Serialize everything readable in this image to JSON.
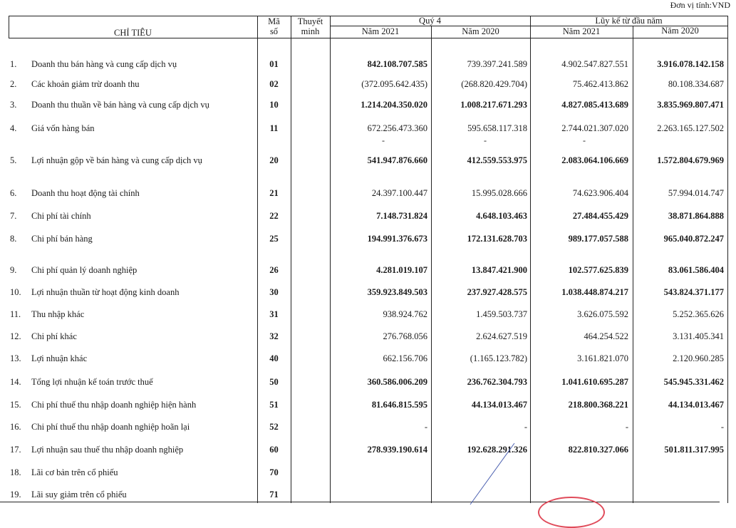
{
  "unit_label": "Đơn vị tính:VND",
  "header": {
    "indicator": "CHỈ TIÊU",
    "code": "Mã số",
    "code_line1": "Mã",
    "code_line2": "số",
    "note_line1": "Thuyết",
    "note_line2": "minh",
    "quarter_group": "Quý 4",
    "ytd_group": "Lũy kế từ đầu năm",
    "year_2021": "Năm 2021",
    "year_2020": "Năm 2020"
  },
  "rows": [
    {
      "no": "1.",
      "label": "Doanh thu bán hàng và cung cấp dịch vụ",
      "code": "01",
      "q4_2021": "842.108.707.585",
      "q4_2020": "739.397.241.589",
      "ytd_2021": "4.902.547.827.551",
      "ytd_2020": "3.916.078.142.158"
    },
    {
      "no": "2.",
      "label": "Các khoản giảm trừ doanh thu",
      "code": "02",
      "q4_2021": "(372.095.642.435)",
      "q4_2020": "(268.820.429.704)",
      "ytd_2021": "75.462.413.862",
      "ytd_2020": "80.108.334.687"
    },
    {
      "no": "3.",
      "label": "Doanh thu thuần về bán hàng và cung cấp dịch vụ",
      "code": "10",
      "q4_2021": "1.214.204.350.020",
      "q4_2020": "1.008.217.671.293",
      "ytd_2021": "4.827.085.413.689",
      "ytd_2020": "3.835.969.807.471"
    },
    {
      "no": "4.",
      "label": "Giá vốn hàng bán",
      "code": "11",
      "q4_2021": "672.256.473.360",
      "q4_2020": "595.658.117.318",
      "ytd_2021": "2.744.021.307.020",
      "ytd_2020": "2.263.165.127.502"
    },
    {
      "no": "5.",
      "label": "Lợi nhuận gộp về bán hàng và cung cấp dịch vụ",
      "code": "20",
      "q4_2021": "541.947.876.660",
      "q4_2020": "412.559.553.975",
      "ytd_2021": "2.083.064.106.669",
      "ytd_2020": "1.572.804.679.969"
    },
    {
      "no": "6.",
      "label": "Doanh thu hoạt động tài chính",
      "code": "21",
      "q4_2021": "24.397.100.447",
      "q4_2020": "15.995.028.666",
      "ytd_2021": "74.623.906.404",
      "ytd_2020": "57.994.014.747"
    },
    {
      "no": "7.",
      "label": "Chi phí tài chính",
      "code": "22",
      "q4_2021": "7.148.731.824",
      "q4_2020": "4.648.103.463",
      "ytd_2021": "27.484.455.429",
      "ytd_2020": "38.871.864.888"
    },
    {
      "no": "8.",
      "label": "Chi phí bán hàng",
      "code": "25",
      "q4_2021": "194.991.376.673",
      "q4_2020": "172.131.628.703",
      "ytd_2021": "989.177.057.588",
      "ytd_2020": "965.040.872.247"
    },
    {
      "no": "9.",
      "label": "Chi phí quản lý doanh nghiệp",
      "code": "26",
      "q4_2021": "4.281.019.107",
      "q4_2020": "13.847.421.900",
      "ytd_2021": "102.577.625.839",
      "ytd_2020": "83.061.586.404"
    },
    {
      "no": "10.",
      "label": "Lợi nhuận thuần từ hoạt động kinh doanh",
      "code": "30",
      "q4_2021": "359.923.849.503",
      "q4_2020": "237.927.428.575",
      "ytd_2021": "1.038.448.874.217",
      "ytd_2020": "543.824.371.177"
    },
    {
      "no": "11.",
      "label": "Thu nhập khác",
      "code": "31",
      "q4_2021": "938.924.762",
      "q4_2020": "1.459.503.737",
      "ytd_2021": "3.626.075.592",
      "ytd_2020": "5.252.365.626"
    },
    {
      "no": "12.",
      "label": "Chi phí khác",
      "code": "32",
      "q4_2021": "276.768.056",
      "q4_2020": "2.624.627.519",
      "ytd_2021": "464.254.522",
      "ytd_2020": "3.131.405.341"
    },
    {
      "no": "13.",
      "label": "Lợi nhuận khác",
      "code": "40",
      "q4_2021": "662.156.706",
      "q4_2020": "(1.165.123.782)",
      "ytd_2021": "3.161.821.070",
      "ytd_2020": "2.120.960.285"
    },
    {
      "no": "14.",
      "label": "Tổng lợi nhuận kế toán trước thuế",
      "code": "50",
      "q4_2021": "360.586.006.209",
      "q4_2020": "236.762.304.793",
      "ytd_2021": "1.041.610.695.287",
      "ytd_2020": "545.945.331.462"
    },
    {
      "no": "15.",
      "label": "Chi phí thuế thu nhập doanh nghiệp hiện hành",
      "code": "51",
      "q4_2021": "81.646.815.595",
      "q4_2020": "44.134.013.467",
      "ytd_2021": "218.800.368.221",
      "ytd_2020": "44.134.013.467"
    },
    {
      "no": "16.",
      "label": "Chi phí thuế thu nhập doanh nghiệp hoãn lại",
      "code": "52",
      "q4_2021": "-",
      "q4_2020": "-",
      "ytd_2021": "-",
      "ytd_2020": "-"
    },
    {
      "no": "17.",
      "label": "Lợi nhuận sau thuế thu nhập doanh nghiệp",
      "code": "60",
      "q4_2021": "278.939.190.614",
      "q4_2020": "192.628.291.326",
      "ytd_2021": "822.810.327.066",
      "ytd_2020": "501.811.317.995"
    },
    {
      "no": "18.",
      "label": "Lãi cơ bản trên cổ phiếu",
      "code": "70",
      "q4_2021": "",
      "q4_2020": "",
      "ytd_2021": "",
      "ytd_2020": ""
    },
    {
      "no": "19.",
      "label": "Lãi suy giảm trên cổ phiếu",
      "code": "71",
      "q4_2021": "",
      "q4_2020": "",
      "ytd_2021": "",
      "ytd_2020": ""
    }
  ],
  "extra_dash": "-",
  "stamp_color": "#e04b5a"
}
